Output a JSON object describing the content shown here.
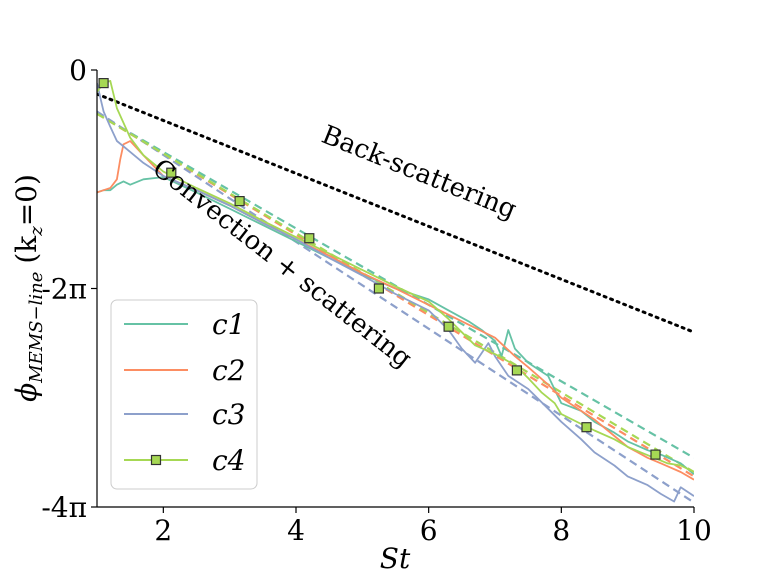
{
  "chart_data": {
    "type": "line",
    "xlabel": "St",
    "ylabel": "ϕ_{MEMS−line} (k_z = 0)",
    "ylabel_main": "ϕ",
    "ylabel_sub": "MEMS−line",
    "ylabel_args": "(k",
    "ylabel_args_sub": "z",
    "ylabel_args_tail": "=0)",
    "xlim": [
      1,
      10
    ],
    "ylim_units_of_pi": [
      -4,
      0
    ],
    "xticks": [
      {
        "value": 2,
        "label": "2"
      },
      {
        "value": 4,
        "label": "4"
      },
      {
        "value": 6,
        "label": "6"
      },
      {
        "value": 8,
        "label": "8"
      },
      {
        "value": 10,
        "label": "10"
      }
    ],
    "yticks": [
      {
        "value": 0,
        "label": "0"
      },
      {
        "value": -2,
        "label": "-2π"
      },
      {
        "value": -4,
        "label": "-4π"
      }
    ],
    "annotations": [
      {
        "text": "Back-scattering",
        "x": 6.0,
        "y": -0.95
      },
      {
        "text": "Convection + scattering",
        "x": 4.2,
        "y": -1.82
      }
    ],
    "reference_line": {
      "name": "back-scattering-line",
      "style": "dotted",
      "color": "#000000",
      "x": [
        1,
        10
      ],
      "y": [
        -0.22,
        -2.4
      ]
    },
    "series": [
      {
        "name": "c1",
        "color": "#66c2a5",
        "marker": "none",
        "x": [
          1.0,
          1.1,
          1.2,
          1.3,
          1.4,
          1.5,
          1.7,
          2.0,
          2.5,
          3.0,
          3.5,
          4.0,
          4.5,
          5.0,
          5.5,
          6.0,
          6.3,
          6.6,
          6.8,
          7.0,
          7.1,
          7.2,
          7.3,
          7.5,
          7.8,
          8.0,
          8.3,
          8.5,
          8.8,
          9.0,
          9.3,
          9.5,
          9.8,
          10.0
        ],
        "y": [
          -1.12,
          -1.1,
          -1.1,
          -1.05,
          -1.02,
          -1.05,
          -1.0,
          -0.98,
          -1.12,
          -1.27,
          -1.42,
          -1.57,
          -1.72,
          -1.87,
          -2.0,
          -2.1,
          -2.2,
          -2.3,
          -2.38,
          -2.48,
          -2.62,
          -2.38,
          -2.55,
          -2.68,
          -2.8,
          -3.05,
          -3.12,
          -3.22,
          -3.32,
          -3.4,
          -3.48,
          -3.52,
          -3.6,
          -3.7
        ]
      },
      {
        "name": "c2",
        "color": "#fc8d62",
        "marker": "none",
        "x": [
          1.0,
          1.1,
          1.2,
          1.3,
          1.35,
          1.4,
          1.5,
          1.7,
          2.0,
          2.5,
          3.0,
          3.5,
          4.0,
          4.5,
          5.0,
          5.5,
          6.0,
          6.5,
          7.0,
          7.3,
          7.5,
          7.8,
          8.0,
          8.3,
          8.5,
          8.8,
          9.0,
          9.3,
          9.5,
          9.8,
          10.0
        ],
        "y": [
          -1.12,
          -1.1,
          -1.08,
          -1.0,
          -0.82,
          -0.68,
          -0.65,
          -0.78,
          -0.97,
          -1.1,
          -1.24,
          -1.4,
          -1.55,
          -1.7,
          -1.86,
          -2.0,
          -2.15,
          -2.3,
          -2.45,
          -2.62,
          -2.72,
          -2.88,
          -3.0,
          -3.12,
          -3.2,
          -3.35,
          -3.45,
          -3.55,
          -3.6,
          -3.68,
          -3.75
        ]
      },
      {
        "name": "c3",
        "color": "#8da0cb",
        "marker": "none",
        "x": [
          1.0,
          1.03,
          1.06,
          1.1,
          1.2,
          1.3,
          1.5,
          1.7,
          2.0,
          2.5,
          3.0,
          3.5,
          4.0,
          4.5,
          5.0,
          5.5,
          6.0,
          6.3,
          6.5,
          6.7,
          6.9,
          7.0,
          7.2,
          7.5,
          7.8,
          8.0,
          8.3,
          8.5,
          8.8,
          9.0,
          9.3,
          9.5,
          9.7,
          9.8,
          10.0
        ],
        "y": [
          -0.12,
          -0.2,
          -0.28,
          -0.38,
          -0.52,
          -0.65,
          -0.75,
          -0.85,
          -0.97,
          -1.1,
          -1.24,
          -1.4,
          -1.55,
          -1.72,
          -1.88,
          -2.05,
          -2.2,
          -2.38,
          -2.55,
          -2.68,
          -2.5,
          -2.62,
          -2.8,
          -2.92,
          -3.1,
          -3.22,
          -3.38,
          -3.5,
          -3.62,
          -3.72,
          -3.8,
          -3.88,
          -3.95,
          -3.82,
          -3.9
        ]
      },
      {
        "name": "c4",
        "color": "#a6d854",
        "marker": "square",
        "x": [
          1.0,
          1.1,
          1.2,
          1.3,
          1.5,
          1.7,
          2.0,
          2.5,
          3.0,
          3.5,
          4.0,
          4.5,
          5.0,
          5.5,
          6.0,
          6.3,
          6.5,
          6.7,
          7.0,
          7.3,
          7.5,
          7.7,
          7.9,
          8.0,
          8.3,
          8.5,
          8.8,
          9.0,
          9.2,
          9.4,
          9.6,
          9.8,
          10.0
        ],
        "y": [
          -0.2,
          -0.12,
          -0.1,
          -0.35,
          -0.62,
          -0.78,
          -0.93,
          -1.08,
          -1.22,
          -1.38,
          -1.53,
          -1.68,
          -1.83,
          -1.98,
          -2.12,
          -2.28,
          -2.4,
          -2.52,
          -2.6,
          -2.7,
          -2.82,
          -2.95,
          -3.05,
          -3.15,
          -3.24,
          -3.3,
          -3.38,
          -3.45,
          -3.5,
          -3.55,
          -3.6,
          -3.62,
          -3.68
        ]
      }
    ],
    "fits": [
      {
        "name": "c1-fit",
        "color": "#66c2a5",
        "x": [
          1,
          10
        ],
        "y": [
          -0.4,
          -3.55
        ]
      },
      {
        "name": "c2-fit",
        "color": "#fc8d62",
        "x": [
          1,
          10
        ],
        "y": [
          -0.4,
          -3.72
        ]
      },
      {
        "name": "c3-fit",
        "color": "#8da0cb",
        "x": [
          1,
          10
        ],
        "y": [
          -0.38,
          -3.96
        ]
      },
      {
        "name": "c4-fit",
        "color": "#a6d854",
        "x": [
          1,
          10
        ],
        "y": [
          -0.4,
          -3.68
        ]
      }
    ],
    "c4_markers": {
      "x": [
        1.1,
        2.12,
        3.15,
        4.2,
        5.25,
        6.3,
        7.33,
        8.38,
        9.42
      ],
      "y": [
        -0.12,
        -0.94,
        -1.2,
        -1.54,
        -2.0,
        -2.35,
        -2.75,
        -3.27,
        -3.52
      ]
    },
    "legend": {
      "placement": "lower-left",
      "entries": [
        {
          "label": "c1",
          "color": "#66c2a5",
          "marker": "none"
        },
        {
          "label": "c2",
          "color": "#fc8d62",
          "marker": "none"
        },
        {
          "label": "c3",
          "color": "#8da0cb",
          "marker": "none"
        },
        {
          "label": "c4",
          "color": "#a6d854",
          "marker": "square"
        }
      ]
    }
  }
}
